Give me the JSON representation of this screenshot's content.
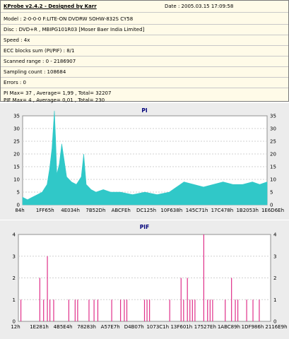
{
  "header": {
    "title": "KProbe v2.4.2 - Designed by Karr",
    "date": "Date : 2005.03.15 17:09:58"
  },
  "info": {
    "model": "Model : 2-0-0-0 F:LITE-ON DVDRW SOHW-832S  CY58",
    "disc": "Disc : DVD+R , MBIPG101R03 [Moser Baer India Limited]",
    "speed": "Speed : 4x",
    "ecc": "ECC blocks sum (PI/PIF) : 8/1",
    "scanned": "Scanned range : 0 - 2186907",
    "sampling": "Sampling count : 108684",
    "errors": "Errors : 0",
    "pi_stats": "PI Max= 37 , Average= 1,99 , Total= 32207",
    "pif_stats": "PIF Max= 4 , Average= 0,01 , Total= 230"
  },
  "chart_data": [
    {
      "type": "area",
      "title": "PI",
      "color": "#30c8c8",
      "ylim": [
        0,
        35
      ],
      "yticks": [
        0,
        5,
        10,
        15,
        20,
        25,
        30,
        35
      ],
      "xticks": [
        "84h",
        "1FF65h",
        "4E034h",
        "7B52Dh",
        "ABCFEh",
        "DC125h",
        "10F638h",
        "145C71h",
        "17C478h",
        "1B2053h",
        "1E6D6Eh"
      ],
      "x": [
        0,
        0.02,
        0.04,
        0.06,
        0.08,
        0.1,
        0.11,
        0.12,
        0.13,
        0.135,
        0.14,
        0.15,
        0.16,
        0.18,
        0.2,
        0.22,
        0.24,
        0.25,
        0.26,
        0.28,
        0.3,
        0.33,
        0.36,
        0.4,
        0.45,
        0.5,
        0.55,
        0.6,
        0.63,
        0.66,
        0.7,
        0.74,
        0.78,
        0.82,
        0.86,
        0.9,
        0.94,
        0.97,
        1.0
      ],
      "values": [
        3,
        2,
        3,
        4,
        5,
        8,
        14,
        22,
        37,
        26,
        12,
        16,
        24,
        11,
        9,
        8,
        11,
        20,
        8,
        6,
        5,
        6,
        5,
        5,
        4,
        5,
        4,
        5,
        7,
        9,
        8,
        7,
        8,
        9,
        8,
        8,
        9,
        8,
        9
      ],
      "series": [
        {
          "name": "PI"
        }
      ]
    },
    {
      "type": "bar",
      "title": "PIF",
      "color": "#e0308a",
      "ylim": [
        0,
        4
      ],
      "yticks": [
        0,
        1,
        2,
        3,
        4
      ],
      "xticks": [
        "12h",
        "1E281h",
        "4B5E4h",
        "78283h",
        "A57E7h",
        "D4B07h",
        "1073C1h",
        "13F601h",
        "17527Eh",
        "1ABC89h",
        "1DF986h",
        "2116E9h"
      ],
      "x": [
        0.01,
        0.085,
        0.1,
        0.115,
        0.125,
        0.14,
        0.2,
        0.225,
        0.235,
        0.28,
        0.3,
        0.315,
        0.37,
        0.405,
        0.42,
        0.43,
        0.5,
        0.51,
        0.52,
        0.6,
        0.645,
        0.655,
        0.67,
        0.68,
        0.69,
        0.7,
        0.735,
        0.75,
        0.76,
        0.77,
        0.82,
        0.845,
        0.86,
        0.87,
        0.905,
        0.93,
        0.955
      ],
      "values": [
        1,
        2,
        1,
        3,
        1,
        1,
        1,
        1,
        1,
        1,
        1,
        1,
        1,
        1,
        1,
        1,
        1,
        1,
        1,
        1,
        2,
        1,
        2,
        1,
        1,
        1,
        4,
        1,
        1,
        1,
        1,
        2,
        1,
        1,
        1,
        1,
        1
      ],
      "series": [
        {
          "name": "PIF"
        }
      ]
    }
  ]
}
